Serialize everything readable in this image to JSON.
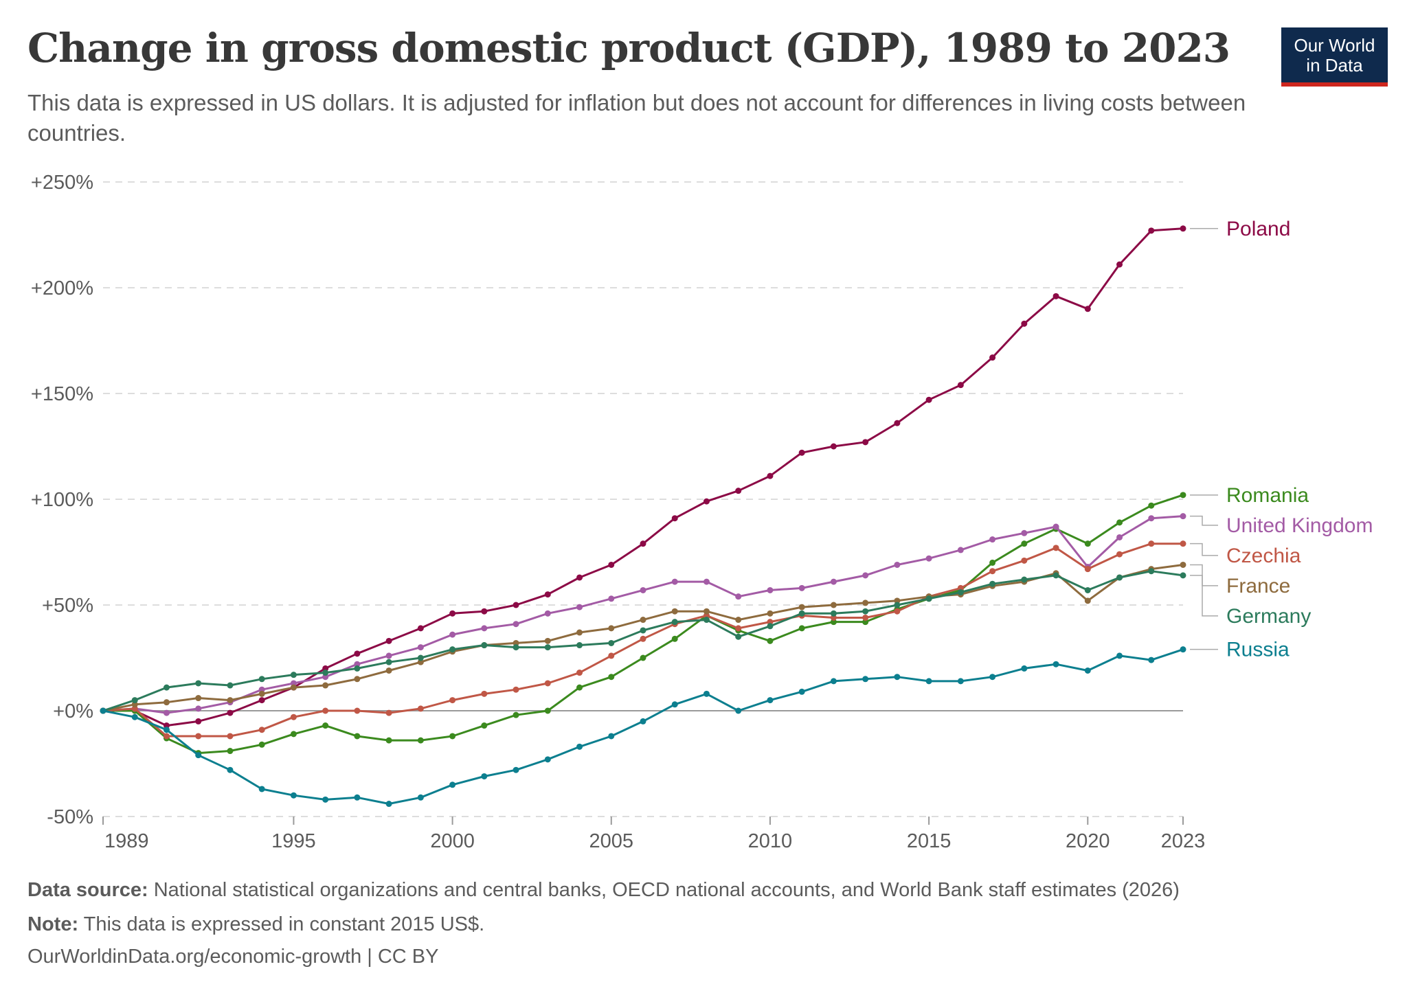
{
  "header": {
    "title": "Change in gross domestic product (GDP), 1989 to 2023",
    "subtitle": "This data is expressed in US dollars. It is adjusted for inflation but does not account for differences in living costs between countries."
  },
  "logo": {
    "line1": "Our World",
    "line2": "in Data",
    "bg_color": "#0f2a4d",
    "accent_color": "#ce261e"
  },
  "footer": {
    "source_label": "Data source:",
    "source_text": "National statistical organizations and central banks, OECD national accounts, and World Bank staff estimates (2026)",
    "note_label": "Note:",
    "note_text": "This data is expressed in constant 2015 US$.",
    "url": "OurWorldinData.org/economic-growth | CC BY"
  },
  "chart_data": {
    "type": "line",
    "x_ticks": [
      1989,
      1995,
      2000,
      2005,
      2010,
      2015,
      2020,
      2023
    ],
    "y_ticks": [
      -50,
      0,
      50,
      100,
      150,
      200,
      250
    ],
    "y_tick_labels": [
      "-50%",
      "+0%",
      "+50%",
      "+100%",
      "+150%",
      "+200%",
      "+250%"
    ],
    "xlim": [
      1989,
      2023
    ],
    "ylim": [
      -50,
      250
    ],
    "grid": "horizontal dashed",
    "legend": "right, labels at line ends",
    "x": [
      1989,
      1990,
      1991,
      1992,
      1993,
      1994,
      1995,
      1996,
      1997,
      1998,
      1999,
      2000,
      2001,
      2002,
      2003,
      2004,
      2005,
      2006,
      2007,
      2008,
      2009,
      2010,
      2011,
      2012,
      2013,
      2014,
      2015,
      2016,
      2017,
      2018,
      2019,
      2020,
      2021,
      2022,
      2023
    ],
    "series": [
      {
        "name": "Poland",
        "color": "#8c0a46",
        "values": [
          0,
          0,
          -7,
          -5,
          -1,
          5,
          11,
          20,
          27,
          33,
          39,
          46,
          47,
          50,
          55,
          63,
          69,
          79,
          91,
          99,
          104,
          111,
          122,
          125,
          127,
          136,
          147,
          154,
          167,
          183,
          196,
          190,
          211,
          227,
          228
        ]
      },
      {
        "name": "Romania",
        "color": "#3b8a1e",
        "values": [
          0,
          0,
          -13,
          -20,
          -19,
          -16,
          -11,
          -7,
          -12,
          -14,
          -14,
          -12,
          -7,
          -2,
          0,
          11,
          16,
          25,
          34,
          45,
          38,
          33,
          39,
          42,
          42,
          48,
          53,
          57,
          70,
          79,
          86,
          79,
          89,
          97,
          102
        ]
      },
      {
        "name": "United Kingdom",
        "color": "#a35ba5",
        "values": [
          0,
          1,
          -1,
          1,
          4,
          10,
          13,
          16,
          22,
          26,
          30,
          36,
          39,
          41,
          46,
          49,
          53,
          57,
          61,
          61,
          54,
          57,
          58,
          61,
          64,
          69,
          72,
          76,
          81,
          84,
          87,
          68,
          82,
          91,
          92
        ]
      },
      {
        "name": "Czechia",
        "color": "#c05746",
        "values": [
          0,
          1,
          -12,
          -12,
          -12,
          -9,
          -3,
          0,
          0,
          -1,
          1,
          5,
          8,
          10,
          13,
          18,
          26,
          34,
          41,
          45,
          39,
          42,
          45,
          44,
          44,
          47,
          54,
          58,
          66,
          71,
          77,
          67,
          74,
          79,
          79
        ]
      },
      {
        "name": "France",
        "color": "#8e6b3e",
        "values": [
          0,
          3,
          4,
          6,
          5,
          8,
          11,
          12,
          15,
          19,
          23,
          28,
          31,
          32,
          33,
          37,
          39,
          43,
          47,
          47,
          43,
          46,
          49,
          50,
          51,
          52,
          54,
          55,
          59,
          61,
          65,
          52,
          63,
          67,
          69
        ]
      },
      {
        "name": "Germany",
        "color": "#2c7b5c",
        "values": [
          0,
          5,
          11,
          13,
          12,
          15,
          17,
          18,
          20,
          23,
          25,
          29,
          31,
          30,
          30,
          31,
          32,
          38,
          42,
          43,
          35,
          40,
          46,
          46,
          47,
          50,
          53,
          56,
          60,
          62,
          64,
          57,
          63,
          66,
          64
        ]
      },
      {
        "name": "Russia",
        "color": "#0c7f8f",
        "values": [
          0,
          -3,
          -9,
          -21,
          -28,
          -37,
          -40,
          -42,
          -41,
          -44,
          -41,
          -35,
          -31,
          -28,
          -23,
          -17,
          -12,
          -5,
          3,
          8,
          0,
          5,
          9,
          14,
          15,
          16,
          14,
          14,
          16,
          20,
          22,
          19,
          26,
          24,
          29
        ]
      }
    ]
  }
}
